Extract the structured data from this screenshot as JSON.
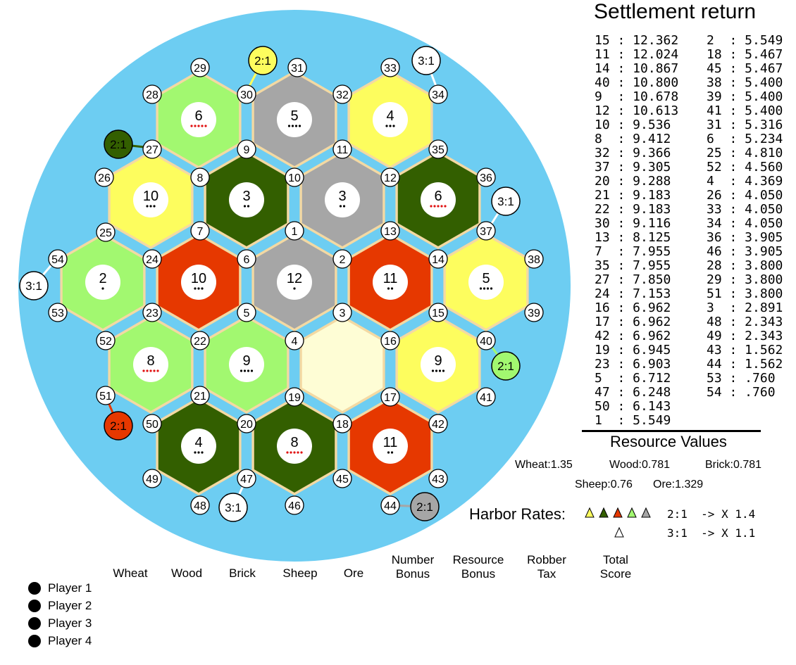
{
  "board": {
    "ocean_color": "#6dcdf2",
    "border_color": "#f3d9a3",
    "resource_colors": {
      "wheat": "#fdfd5e",
      "wood": "#335f00",
      "brick": "#e63800",
      "sheep": "#a2f870",
      "ore": "#a6a6a6",
      "desert": "#fefdd5"
    },
    "tiles": [
      {
        "number": "6",
        "pips": 5,
        "resource": "sheep"
      },
      {
        "number": "5",
        "pips": 4,
        "resource": "ore"
      },
      {
        "number": "4",
        "pips": 3,
        "resource": "wheat"
      },
      {
        "number": "10",
        "pips": 3,
        "resource": "wheat"
      },
      {
        "number": "3",
        "pips": 2,
        "resource": "wood"
      },
      {
        "number": "3",
        "pips": 2,
        "resource": "ore"
      },
      {
        "number": "6",
        "pips": 5,
        "resource": "wood"
      },
      {
        "number": "2",
        "pips": 1,
        "resource": "sheep"
      },
      {
        "number": "10",
        "pips": 3,
        "resource": "brick"
      },
      {
        "number": "12",
        "pips": 1,
        "resource": "ore"
      },
      {
        "number": "11",
        "pips": 2,
        "resource": "brick"
      },
      {
        "number": "5",
        "pips": 4,
        "resource": "wheat"
      },
      {
        "number": "8",
        "pips": 5,
        "resource": "sheep"
      },
      {
        "number": "9",
        "pips": 4,
        "resource": "sheep"
      },
      {
        "number": "",
        "pips": 0,
        "resource": "desert"
      },
      {
        "number": "9",
        "pips": 4,
        "resource": "wheat"
      },
      {
        "number": "4",
        "pips": 3,
        "resource": "wood"
      },
      {
        "number": "8",
        "pips": 5,
        "resource": "wood"
      },
      {
        "number": "11",
        "pips": 2,
        "resource": "brick"
      }
    ],
    "vertices": [
      "29",
      "31",
      "33",
      "28",
      "30",
      "32",
      "34",
      "9",
      "11",
      "35",
      "27",
      "8",
      "10",
      "12",
      "36",
      "26",
      "7",
      "1",
      "13",
      "37",
      "25",
      "6",
      "2",
      "14",
      "38",
      "54",
      "24",
      "5",
      "3",
      "15",
      "39",
      "53",
      "23",
      "4",
      "16",
      "40",
      "52",
      "22",
      "19",
      "17",
      "41",
      "51",
      "21",
      "20",
      "18",
      "42",
      "50",
      "47",
      "45",
      "43",
      "49",
      "48",
      "46",
      "44"
    ],
    "harbors": [
      {
        "label": "2:1",
        "type": "wheat"
      },
      {
        "label": "3:1",
        "type": "generic"
      },
      {
        "label": "2:1",
        "type": "wood"
      },
      {
        "label": "3:1",
        "type": "generic"
      },
      {
        "label": "3:1",
        "type": "generic"
      },
      {
        "label": "2:1",
        "type": "sheep"
      },
      {
        "label": "2:1",
        "type": "brick"
      },
      {
        "label": "3:1",
        "type": "generic"
      },
      {
        "label": "2:1",
        "type": "ore"
      }
    ]
  },
  "settlement_return": {
    "title": "Settlement return",
    "left_column": [
      [
        "15",
        "12.362"
      ],
      [
        "11",
        "12.024"
      ],
      [
        "14",
        "10.867"
      ],
      [
        "40",
        "10.800"
      ],
      [
        "9",
        "10.678"
      ],
      [
        "12",
        "10.613"
      ],
      [
        "10",
        "9.536"
      ],
      [
        "8",
        "9.412"
      ],
      [
        "32",
        "9.366"
      ],
      [
        "37",
        "9.305"
      ],
      [
        "20",
        "9.288"
      ],
      [
        "21",
        "9.183"
      ],
      [
        "22",
        "9.183"
      ],
      [
        "30",
        "9.116"
      ],
      [
        "13",
        "8.125"
      ],
      [
        "7",
        "7.955"
      ],
      [
        "35",
        "7.955"
      ],
      [
        "27",
        "7.850"
      ],
      [
        "24",
        "7.153"
      ],
      [
        "16",
        "6.962"
      ],
      [
        "17",
        "6.962"
      ],
      [
        "42",
        "6.962"
      ],
      [
        "19",
        "6.945"
      ],
      [
        "23",
        "6.903"
      ],
      [
        "5",
        "6.712"
      ],
      [
        "47",
        "6.248"
      ],
      [
        "50",
        "6.143"
      ],
      [
        "1",
        "5.549"
      ]
    ],
    "right_column": [
      [
        "2",
        "5.549"
      ],
      [
        "18",
        "5.467"
      ],
      [
        "45",
        "5.467"
      ],
      [
        "38",
        "5.400"
      ],
      [
        "39",
        "5.400"
      ],
      [
        "41",
        "5.400"
      ],
      [
        "31",
        "5.316"
      ],
      [
        "6",
        "5.234"
      ],
      [
        "25",
        "4.810"
      ],
      [
        "52",
        "4.560"
      ],
      [
        "4",
        "4.369"
      ],
      [
        "26",
        "4.050"
      ],
      [
        "33",
        "4.050"
      ],
      [
        "34",
        "4.050"
      ],
      [
        "36",
        "3.905"
      ],
      [
        "46",
        "3.905"
      ],
      [
        "28",
        "3.800"
      ],
      [
        "29",
        "3.800"
      ],
      [
        "51",
        "3.800"
      ],
      [
        "3",
        "2.891"
      ],
      [
        "48",
        "2.343"
      ],
      [
        "49",
        "2.343"
      ],
      [
        "43",
        "1.562"
      ],
      [
        "44",
        "1.562"
      ],
      [
        "53",
        ".760"
      ],
      [
        "54",
        ".760"
      ]
    ]
  },
  "resource_values": {
    "title": "Resource Values",
    "wheat": "Wheat:1.35",
    "wood": "Wood:0.781",
    "brick": "Brick:0.781",
    "sheep": "Sheep:0.76",
    "ore": "Ore:1.329"
  },
  "harbor_rates": {
    "title": "Harbor Rates:",
    "two_to_one": "2:1  -> X 1.4",
    "three_to_one": "3:1  -> X 1.1"
  },
  "score_columns": {
    "wheat": "Wheat",
    "wood": "Wood",
    "brick": "Brick",
    "sheep": "Sheep",
    "ore": "Ore",
    "number_bonus": [
      "Number",
      "Bonus"
    ],
    "resource_bonus": [
      "Resource",
      "Bonus"
    ],
    "robber_tax": [
      "Robber",
      "Tax"
    ],
    "total_score": [
      "Total",
      "Score"
    ]
  },
  "players": [
    "Player 1",
    "Player 2",
    "Player 3",
    "Player 4"
  ]
}
